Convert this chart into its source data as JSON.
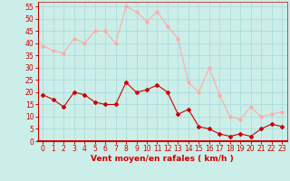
{
  "hours": [
    0,
    1,
    2,
    3,
    4,
    5,
    6,
    7,
    8,
    9,
    10,
    11,
    12,
    13,
    14,
    15,
    16,
    17,
    18,
    19,
    20,
    21,
    22,
    23
  ],
  "wind_mean": [
    19,
    17,
    14,
    20,
    19,
    16,
    15,
    15,
    24,
    20,
    21,
    23,
    20,
    11,
    13,
    6,
    5,
    3,
    2,
    3,
    2,
    5,
    7,
    6
  ],
  "wind_gust": [
    39,
    37,
    36,
    42,
    40,
    45,
    45,
    40,
    55,
    53,
    49,
    53,
    47,
    42,
    24,
    20,
    30,
    19,
    10,
    9,
    14,
    10,
    11,
    12
  ],
  "bg_color": "#cceee8",
  "grid_color": "#aadddd",
  "mean_color": "#cc0000",
  "gust_color": "#ffaaaa",
  "axis_label_color": "#cc0000",
  "tick_color": "#cc0000",
  "xlabel": "Vent moyen/en rafales ( km/h )",
  "ylim": [
    0,
    57
  ],
  "yticks": [
    0,
    5,
    10,
    15,
    20,
    25,
    30,
    35,
    40,
    45,
    50,
    55
  ],
  "tick_fontsize": 5.5,
  "label_fontsize": 6.5,
  "marker_size": 2.0,
  "linewidth": 0.8
}
